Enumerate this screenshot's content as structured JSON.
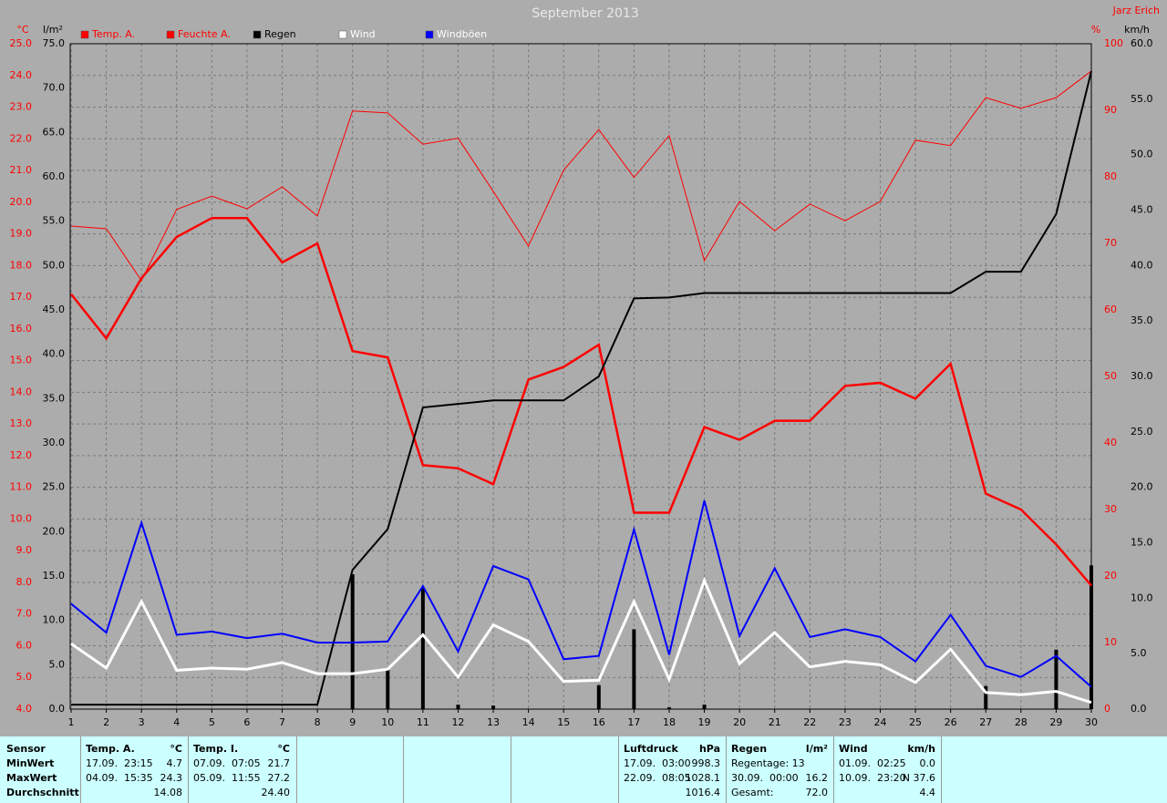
{
  "chart_data": {
    "type": "line",
    "title": "September 2013",
    "author": "Jarz Erich",
    "axis_units": {
      "y": "°C",
      "y3": "l/m²",
      "y2": "%",
      "y4": "km/h"
    },
    "x": [
      1,
      2,
      3,
      4,
      5,
      6,
      7,
      8,
      9,
      10,
      11,
      12,
      13,
      14,
      15,
      16,
      17,
      18,
      19,
      20,
      21,
      22,
      23,
      24,
      25,
      26,
      27,
      28,
      29,
      30
    ],
    "xlim": [
      1,
      30
    ],
    "xticks": [
      1,
      2,
      3,
      4,
      5,
      6,
      7,
      8,
      9,
      10,
      11,
      12,
      13,
      14,
      15,
      16,
      17,
      18,
      19,
      20,
      21,
      22,
      23,
      24,
      25,
      26,
      27,
      28,
      29,
      30
    ],
    "ylim": [
      4,
      25
    ],
    "yticks": [
      {
        "value": 4,
        "label": "4.0"
      },
      {
        "value": 5,
        "label": "5.0"
      },
      {
        "value": 6,
        "label": "6.0"
      },
      {
        "value": 7,
        "label": "7.0"
      },
      {
        "value": 8,
        "label": "8.0"
      },
      {
        "value": 9,
        "label": "9.0"
      },
      {
        "value": 10,
        "label": "10.0"
      },
      {
        "value": 11,
        "label": "11.0"
      },
      {
        "value": 12,
        "label": "12.0"
      },
      {
        "value": 13,
        "label": "13.0"
      },
      {
        "value": 14,
        "label": "14.0"
      },
      {
        "value": 15,
        "label": "15.0"
      },
      {
        "value": 16,
        "label": "16.0"
      },
      {
        "value": 17,
        "label": "17.0"
      },
      {
        "value": 18,
        "label": "18.0"
      },
      {
        "value": 19,
        "label": "19.0"
      },
      {
        "value": 20,
        "label": "20.0"
      },
      {
        "value": 21,
        "label": "21.0"
      },
      {
        "value": 22,
        "label": "22.0"
      },
      {
        "value": 23,
        "label": "23.0"
      },
      {
        "value": 24,
        "label": "24.0"
      },
      {
        "value": 25,
        "label": "25.0"
      }
    ],
    "y2lim": [
      0,
      100
    ],
    "y2ticks": [
      0,
      10,
      20,
      30,
      40,
      50,
      60,
      70,
      80,
      90,
      100
    ],
    "y3lim": [
      0,
      75
    ],
    "y3ticks": [
      {
        "value": 0,
        "label": "0.0"
      },
      {
        "value": 5,
        "label": "5.0"
      },
      {
        "value": 10,
        "label": "10.0"
      },
      {
        "value": 15,
        "label": "15.0"
      },
      {
        "value": 20,
        "label": "20.0"
      },
      {
        "value": 25,
        "label": "25.0"
      },
      {
        "value": 30,
        "label": "30.0"
      },
      {
        "value": 35,
        "label": "35.0"
      },
      {
        "value": 40,
        "label": "40.0"
      },
      {
        "value": 45,
        "label": "45.0"
      },
      {
        "value": 50,
        "label": "50.0"
      },
      {
        "value": 55,
        "label": "55.0"
      },
      {
        "value": 60,
        "label": "60.0"
      },
      {
        "value": 65,
        "label": "65.0"
      },
      {
        "value": 70,
        "label": "70.0"
      },
      {
        "value": 75,
        "label": "75.0"
      }
    ],
    "y4lim": [
      0,
      60
    ],
    "y4ticks": [
      {
        "value": 0,
        "label": "0.0"
      },
      {
        "value": 5,
        "label": "5.0"
      },
      {
        "value": 10,
        "label": "10.0"
      },
      {
        "value": 15,
        "label": "15.0"
      },
      {
        "value": 20,
        "label": "20.0"
      },
      {
        "value": 25,
        "label": "25.0"
      },
      {
        "value": 30,
        "label": "30.0"
      },
      {
        "value": 35,
        "label": "35.0"
      },
      {
        "value": 40,
        "label": "40.0"
      },
      {
        "value": 45,
        "label": "45.0"
      },
      {
        "value": 50,
        "label": "50.0"
      },
      {
        "value": 55,
        "label": "55.0"
      },
      {
        "value": 60,
        "label": "60.0"
      }
    ],
    "grid": true,
    "series": [
      {
        "name": "Temp. A.",
        "color": "#ff0000",
        "axis": "y",
        "values": [
          17.1,
          15.7,
          17.6,
          18.9,
          19.5,
          19.5,
          18.1,
          18.7,
          15.3,
          15.1,
          11.7,
          11.6,
          11.1,
          14.4,
          14.8,
          15.5,
          10.2,
          10.2,
          12.9,
          12.5,
          13.1,
          13.1,
          14.2,
          14.3,
          13.8,
          14.9,
          10.8,
          10.3,
          9.2,
          7.9
        ]
      },
      {
        "name": "Feuchte A.",
        "color": "#ff0000",
        "axis": "y2",
        "values": [
          72.6,
          72.2,
          64.4,
          75.1,
          77.1,
          75.2,
          78.5,
          74.1,
          89.9,
          89.6,
          84.9,
          85.8,
          77.8,
          69.6,
          81.0,
          87.1,
          79.9,
          86.2,
          67.4,
          76.3,
          71.9,
          75.9,
          73.4,
          76.3,
          85.5,
          84.7,
          91.9,
          90.3,
          91.9,
          95.9
        ]
      },
      {
        "name": "Regen",
        "color": "#000000",
        "axis": "y3",
        "values": [
          0.5,
          0.5,
          0.5,
          0.5,
          0.5,
          0.5,
          0.5,
          0.5,
          15.7,
          20.3,
          34.0,
          34.4,
          34.8,
          34.8,
          34.8,
          37.5,
          46.3,
          46.4,
          46.9,
          46.9,
          46.9,
          46.9,
          46.9,
          46.9,
          46.9,
          46.9,
          49.3,
          49.3,
          55.8,
          71.9
        ]
      },
      {
        "name": "Wind",
        "color": "#ffffff",
        "axis": "y4",
        "values": [
          5.9,
          3.7,
          9.7,
          3.5,
          3.7,
          3.6,
          4.2,
          3.2,
          3.2,
          3.6,
          6.7,
          2.9,
          7.6,
          6.1,
          2.5,
          2.6,
          9.7,
          2.7,
          11.6,
          4.1,
          6.9,
          3.8,
          4.3,
          4.0,
          2.4,
          5.4,
          1.5,
          1.3,
          1.6,
          0.6
        ]
      },
      {
        "name": "Windböen",
        "color": "#0000ff",
        "axis": "y4",
        "values": [
          9.5,
          6.9,
          16.8,
          6.7,
          7.0,
          6.4,
          6.8,
          6.0,
          6.0,
          6.1,
          11.1,
          5.2,
          12.9,
          11.7,
          4.5,
          4.8,
          16.2,
          4.9,
          18.8,
          6.6,
          12.7,
          6.5,
          7.2,
          6.5,
          4.3,
          8.5,
          3.9,
          2.9,
          4.8,
          2.0
        ]
      },
      {
        "type": "bar",
        "color": "#000000",
        "axis": "y3",
        "values": [
          0,
          0,
          0,
          0,
          0,
          0,
          0,
          0,
          15.2,
          4.4,
          13.7,
          0.5,
          0.4,
          0,
          0,
          2.7,
          9.0,
          0.2,
          0.5,
          0,
          0,
          0,
          0,
          0,
          0,
          0,
          2.6,
          0,
          6.7,
          16.2
        ]
      }
    ]
  },
  "stats_panel": {
    "row_labels": [
      "Sensor",
      "MinWert",
      "MaxWert",
      "Durchschnitt"
    ],
    "columns": [
      {
        "title": "Temp. A.",
        "unit": "°C",
        "rows": [
          {
            "left": "17.09.  23:15",
            "right": "4.7"
          },
          {
            "left": "04.09.  15:35",
            "right": "24.3"
          },
          {
            "right": "14.08"
          }
        ]
      },
      {
        "title": "Temp. I.",
        "unit": "°C",
        "rows": [
          {
            "left": "07.09.  07:05",
            "right": "21.7"
          },
          {
            "left": "05.09.  11:55",
            "right": "27.2"
          },
          {
            "right": "24.40"
          }
        ]
      },
      {
        "title": "Luftdruck",
        "unit": "hPa",
        "rows": [
          {
            "left": "17.09.  03:00",
            "right": "998.3"
          },
          {
            "left": "22.09.  08:05",
            "right": "1028.1"
          },
          {
            "right": "1016.4"
          }
        ]
      },
      {
        "title": "Regen",
        "unit": "l/m²",
        "rows": [
          {
            "left": "Regentage: 13"
          },
          {
            "left": "30.09.  00:00",
            "right": "16.2"
          },
          {
            "left": "Gesamt:",
            "right": "72.0"
          }
        ]
      },
      {
        "title": "Wind",
        "unit": "km/h",
        "rows": [
          {
            "left": "01.09.  02:25",
            "right": "0.0"
          },
          {
            "left": "10.09.  23:20",
            "right": "N 37.6"
          },
          {
            "right": "4.4"
          }
        ]
      }
    ]
  }
}
